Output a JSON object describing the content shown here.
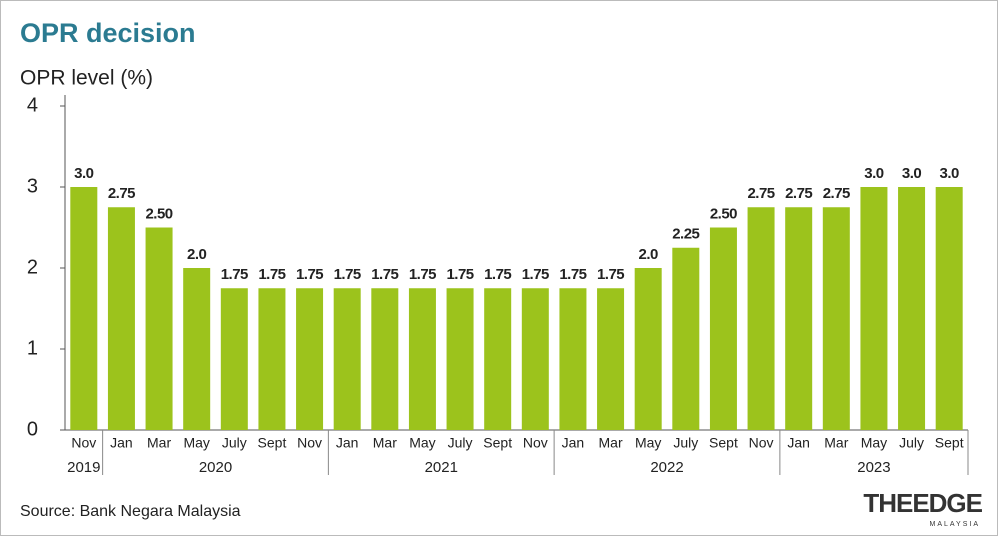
{
  "chart_data": {
    "type": "bar",
    "title": "OPR decision",
    "y_label": "OPR level (%)",
    "categories": [
      "Nov",
      "Jan",
      "Mar",
      "May",
      "July",
      "Sept",
      "Nov",
      "Jan",
      "Mar",
      "May",
      "July",
      "Sept",
      "Nov",
      "Jan",
      "Mar",
      "May",
      "July",
      "Sept",
      "Nov",
      "Jan",
      "Mar",
      "May",
      "July",
      "Sept"
    ],
    "category_years": [
      "2019",
      "2020",
      "2020",
      "2020",
      "2020",
      "2020",
      "2020",
      "2021",
      "2021",
      "2021",
      "2021",
      "2021",
      "2021",
      "2022",
      "2022",
      "2022",
      "2022",
      "2022",
      "2022",
      "2023",
      "2023",
      "2023",
      "2023",
      "2023"
    ],
    "values": [
      3,
      2.75,
      2.5,
      2,
      1.75,
      1.75,
      1.75,
      1.75,
      1.75,
      1.75,
      1.75,
      1.75,
      1.75,
      1.75,
      1.75,
      2,
      2.25,
      2.5,
      2.75,
      2.75,
      2.75,
      3,
      3,
      3
    ],
    "value_labels": [
      "3.0",
      "2.75",
      "2.50",
      "2.0",
      "1.75",
      "1.75",
      "1.75",
      "1.75",
      "1.75",
      "1.75",
      "1.75",
      "1.75",
      "1.75",
      "1.75",
      "1.75",
      "2.0",
      "2.25",
      "2.50",
      "2.75",
      "2.75",
      "2.75",
      "3.0",
      "3.0",
      "3.0"
    ],
    "color": "#9cc31c",
    "ylim": [
      0,
      4
    ],
    "yticks": [
      0,
      1,
      2,
      3,
      4
    ],
    "grid": false,
    "source": "Source: Bank Negara Malaysia",
    "logo": "THEEDGE",
    "logo_sub": "MALAYSIA"
  }
}
